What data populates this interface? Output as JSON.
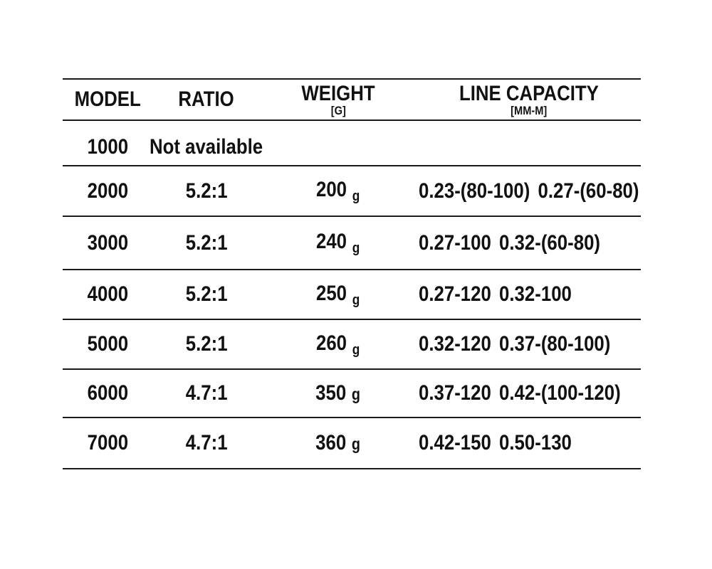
{
  "table": {
    "headers": {
      "model": "MODEL",
      "ratio": "RATIO",
      "weight": "WEIGHT",
      "weight_unit": "[G]",
      "capacity": "LINE CAPACITY",
      "capacity_unit": "[MM-M]"
    },
    "rows": [
      {
        "model": "1000",
        "ratio": "Not available",
        "weight": "",
        "weight_unit": "",
        "capacity": [
          "",
          ""
        ]
      },
      {
        "model": "2000",
        "ratio": "5.2:1",
        "weight": "200",
        "weight_unit": "g",
        "capacity": [
          "0.23-(80-100)",
          "0.27-(60-80)"
        ]
      },
      {
        "model": "3000",
        "ratio": "5.2:1",
        "weight": "240",
        "weight_unit": "g",
        "capacity": [
          "0.27-100",
          "0.32-(60-80)"
        ]
      },
      {
        "model": "4000",
        "ratio": "5.2:1",
        "weight": "250",
        "weight_unit": "g",
        "capacity": [
          "0.27-120",
          "0.32-100"
        ]
      },
      {
        "model": "5000",
        "ratio": "5.2:1",
        "weight": "260",
        "weight_unit": "g",
        "capacity": [
          "0.32-120",
          "0.37-(80-100)"
        ]
      },
      {
        "model": "6000",
        "ratio": "4.7:1",
        "weight": "350",
        "weight_unit": "g",
        "capacity": [
          "0.37-120",
          "0.42-(100-120)"
        ]
      },
      {
        "model": "7000",
        "ratio": "4.7:1",
        "weight": "360",
        "weight_unit": "g",
        "capacity": [
          "0.42-150",
          "0.50-130"
        ]
      }
    ]
  },
  "colors": {
    "text": "#111111",
    "line": "#1a1a1a",
    "background": "#ffffff"
  }
}
